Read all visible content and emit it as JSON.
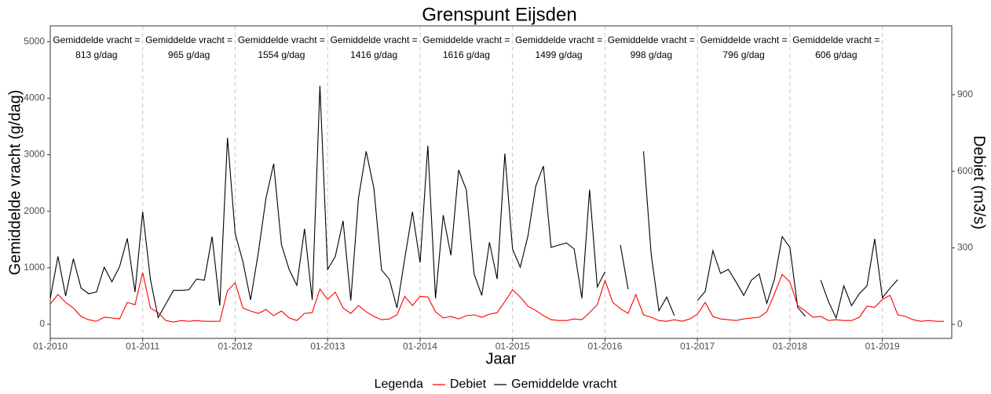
{
  "chart_data": {
    "type": "line",
    "title": "Grenspunt Eijsden",
    "xlabel": "Jaar",
    "ylabel": "Gemiddelde vracht (g/dag)",
    "y2label": "Debiet (m3/s)",
    "legend_title": "Legenda",
    "legend_position": "bottom",
    "x": [
      "01-2010",
      "02-2010",
      "03-2010",
      "04-2010",
      "05-2010",
      "06-2010",
      "07-2010",
      "08-2010",
      "09-2010",
      "10-2010",
      "11-2010",
      "12-2010",
      "01-2011",
      "02-2011",
      "03-2011",
      "04-2011",
      "05-2011",
      "06-2011",
      "07-2011",
      "08-2011",
      "09-2011",
      "10-2011",
      "11-2011",
      "12-2011",
      "01-2012",
      "02-2012",
      "03-2012",
      "04-2012",
      "05-2012",
      "06-2012",
      "07-2012",
      "08-2012",
      "09-2012",
      "10-2012",
      "11-2012",
      "12-2012",
      "01-2013",
      "02-2013",
      "03-2013",
      "04-2013",
      "05-2013",
      "06-2013",
      "07-2013",
      "08-2013",
      "09-2013",
      "10-2013",
      "11-2013",
      "12-2013",
      "01-2014",
      "02-2014",
      "03-2014",
      "04-2014",
      "05-2014",
      "06-2014",
      "07-2014",
      "08-2014",
      "09-2014",
      "10-2014",
      "11-2014",
      "12-2014",
      "01-2015",
      "02-2015",
      "03-2015",
      "04-2015",
      "05-2015",
      "06-2015",
      "07-2015",
      "08-2015",
      "09-2015",
      "10-2015",
      "11-2015",
      "12-2015",
      "01-2016",
      "02-2016",
      "03-2016",
      "04-2016",
      "05-2016",
      "06-2016",
      "07-2016",
      "08-2016",
      "09-2016",
      "10-2016",
      "11-2016",
      "12-2016",
      "01-2017",
      "02-2017",
      "03-2017",
      "04-2017",
      "05-2017",
      "06-2017",
      "07-2017",
      "08-2017",
      "09-2017",
      "10-2017",
      "11-2017",
      "12-2017",
      "01-2018",
      "02-2018",
      "03-2018",
      "04-2018",
      "05-2018",
      "06-2018",
      "07-2018",
      "08-2018",
      "09-2018",
      "10-2018",
      "11-2018",
      "12-2018",
      "01-2019",
      "02-2019",
      "03-2019",
      "04-2019",
      "05-2019",
      "06-2019",
      "07-2019",
      "08-2019",
      "09-2019"
    ],
    "series": [
      {
        "name": "Debiet",
        "color": "#ff0000",
        "axis": "y2",
        "values": [
          80,
          117,
          86,
          64,
          31,
          18,
          12,
          28,
          25,
          21,
          86,
          77,
          203,
          64,
          46,
          15,
          9,
          15,
          12,
          15,
          12,
          12,
          12,
          132,
          163,
          64,
          52,
          43,
          58,
          34,
          52,
          25,
          15,
          43,
          46,
          138,
          98,
          126,
          64,
          43,
          74,
          49,
          31,
          18,
          21,
          37,
          110,
          74,
          110,
          107,
          49,
          25,
          31,
          21,
          34,
          37,
          28,
          40,
          46,
          89,
          135,
          107,
          71,
          55,
          34,
          18,
          15,
          15,
          21,
          18,
          46,
          77,
          172,
          86,
          61,
          43,
          117,
          37,
          28,
          15,
          12,
          18,
          12,
          21,
          40,
          86,
          31,
          21,
          18,
          15,
          21,
          25,
          28,
          49,
          120,
          196,
          166,
          74,
          52,
          28,
          31,
          15,
          18,
          15,
          15,
          28,
          71,
          67,
          98,
          114,
          37,
          31,
          18,
          12,
          15,
          12,
          12
        ]
      },
      {
        "name": "Gemiddelde vracht",
        "color": "#000000",
        "values": [
          457,
          1200,
          500,
          1160,
          640,
          540,
          570,
          1010,
          750,
          1020,
          1520,
          570,
          1990,
          790,
          120,
          360,
          600,
          600,
          610,
          800,
          780,
          1550,
          330,
          3300,
          1600,
          1110,
          430,
          1260,
          2230,
          2840,
          1410,
          970,
          690,
          1690,
          430,
          4220,
          970,
          1200,
          1830,
          420,
          2230,
          3060,
          2410,
          960,
          800,
          290,
          1160,
          1990,
          1090,
          3160,
          460,
          1930,
          1220,
          2730,
          2380,
          890,
          510,
          1450,
          800,
          3020,
          1330,
          1010,
          1560,
          2440,
          2800,
          1360,
          1400,
          1440,
          1330,
          460,
          2380,
          660,
          930,
          null,
          1400,
          620,
          null,
          3060,
          1230,
          240,
          480,
          150,
          null,
          null,
          420,
          580,
          1300,
          900,
          970,
          750,
          510,
          780,
          890,
          370,
          800,
          1550,
          1360,
          300,
          140,
          null,
          780,
          400,
          110,
          680,
          330,
          540,
          680,
          1510,
          470,
          640,
          790,
          null,
          null,
          null,
          null,
          null,
          null
        ]
      }
    ],
    "xlim": [
      "01-2010",
      "10-2019"
    ],
    "xticks": [
      "01-2010",
      "01-2011",
      "01-2012",
      "01-2013",
      "01-2014",
      "01-2015",
      "01-2016",
      "01-2017",
      "01-2018",
      "01-2019"
    ],
    "ylim": [
      -250,
      5280
    ],
    "yticks": [
      0,
      1000,
      2000,
      3000,
      4000,
      5000
    ],
    "y2lim": [
      -55,
      1170
    ],
    "y2ticks": [
      0,
      300,
      600,
      900
    ],
    "grid": false,
    "annotations": [
      [
        "Gemiddelde vracht =",
        "813 g/dag"
      ],
      [
        "Gemiddelde vracht =",
        "965 g/dag"
      ],
      [
        "Gemiddelde vracht =",
        "1554 g/dag"
      ],
      [
        "Gemiddelde vracht =",
        "1416 g/dag"
      ],
      [
        "Gemiddelde vracht =",
        "1616 g/dag"
      ],
      [
        "Gemiddelde vracht =",
        "1499 g/dag"
      ],
      [
        "Gemiddelde vracht =",
        "998 g/dag"
      ],
      [
        "Gemiddelde vracht =",
        "796 g/dag"
      ],
      [
        "Gemiddelde vracht =",
        "606 g/dag"
      ]
    ]
  }
}
